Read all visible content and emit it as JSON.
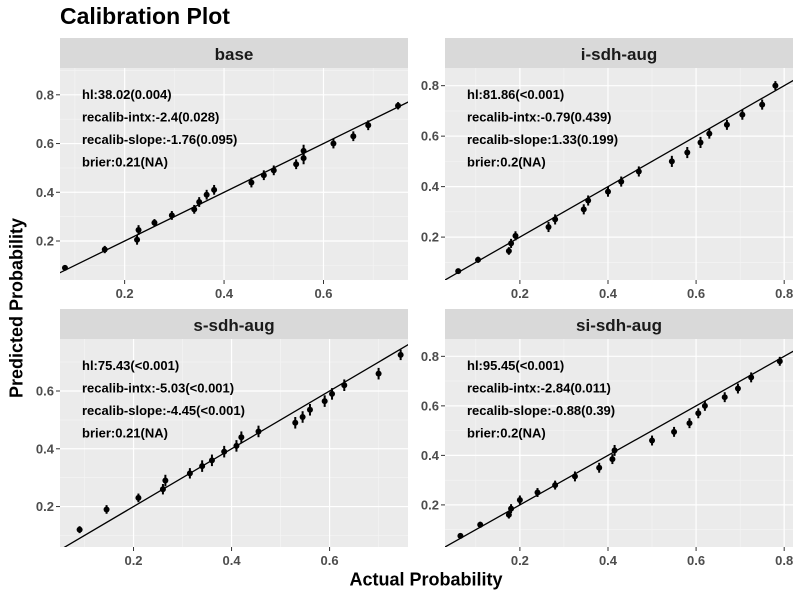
{
  "title": "Calibration Plot",
  "xlabel": "Actual Probability",
  "ylabel": "Predicted Probability",
  "chart_data": [
    {
      "type": "scatter",
      "panel": "base",
      "xlim": [
        0.07,
        0.77
      ],
      "ylim": [
        0.04,
        0.91
      ],
      "x_ticks": [
        0.2,
        0.4,
        0.6
      ],
      "x_tick_labels": [
        "0.2",
        "0.4",
        "0.6"
      ],
      "y_ticks": [
        0.2,
        0.4,
        0.6,
        0.8
      ],
      "y_tick_labels": [
        "0.2",
        "0.4",
        "0.6",
        "0.8"
      ],
      "annotations": [
        "hl:38.02(0.004)",
        "recalib-intx:-2.4(0.028)",
        "recalib-slope:-1.76(0.095)",
        "brier:0.21(NA)"
      ],
      "points": [
        {
          "x": 0.08,
          "y": 0.09,
          "err": 0.01
        },
        {
          "x": 0.16,
          "y": 0.165,
          "err": 0.015
        },
        {
          "x": 0.225,
          "y": 0.205,
          "err": 0.02
        },
        {
          "x": 0.228,
          "y": 0.245,
          "err": 0.02
        },
        {
          "x": 0.26,
          "y": 0.275,
          "err": 0.015
        },
        {
          "x": 0.295,
          "y": 0.305,
          "err": 0.018
        },
        {
          "x": 0.34,
          "y": 0.33,
          "err": 0.018
        },
        {
          "x": 0.35,
          "y": 0.36,
          "err": 0.02
        },
        {
          "x": 0.365,
          "y": 0.39,
          "err": 0.02
        },
        {
          "x": 0.38,
          "y": 0.41,
          "err": 0.02
        },
        {
          "x": 0.455,
          "y": 0.44,
          "err": 0.02
        },
        {
          "x": 0.48,
          "y": 0.47,
          "err": 0.02
        },
        {
          "x": 0.5,
          "y": 0.49,
          "err": 0.02
        },
        {
          "x": 0.545,
          "y": 0.515,
          "err": 0.02
        },
        {
          "x": 0.56,
          "y": 0.54,
          "err": 0.025
        },
        {
          "x": 0.56,
          "y": 0.57,
          "err": 0.025
        },
        {
          "x": 0.62,
          "y": 0.6,
          "err": 0.02
        },
        {
          "x": 0.66,
          "y": 0.63,
          "err": 0.02
        },
        {
          "x": 0.69,
          "y": 0.675,
          "err": 0.02
        },
        {
          "x": 0.75,
          "y": 0.755,
          "err": 0.015
        }
      ]
    },
    {
      "type": "scatter",
      "panel": "i-sdh-aug",
      "xlim": [
        0.03,
        0.82
      ],
      "ylim": [
        0.03,
        0.87
      ],
      "x_ticks": [
        0.2,
        0.4,
        0.6,
        0.8
      ],
      "x_tick_labels": [
        "0.2",
        "0.4",
        "0.6",
        "0.8"
      ],
      "y_ticks": [
        0.2,
        0.4,
        0.6,
        0.8
      ],
      "y_tick_labels": [
        "0.2",
        "0.4",
        "0.6",
        "0.8"
      ],
      "annotations": [
        "hl:81.86(<0.001)",
        "recalib-intx:-0.79(0.439)",
        "recalib-slope:1.33(0.199)",
        "brier:0.2(NA)"
      ],
      "points": [
        {
          "x": 0.06,
          "y": 0.065,
          "err": 0.01
        },
        {
          "x": 0.105,
          "y": 0.11,
          "err": 0.012
        },
        {
          "x": 0.175,
          "y": 0.145,
          "err": 0.015
        },
        {
          "x": 0.18,
          "y": 0.175,
          "err": 0.018
        },
        {
          "x": 0.19,
          "y": 0.205,
          "err": 0.018
        },
        {
          "x": 0.265,
          "y": 0.24,
          "err": 0.02
        },
        {
          "x": 0.28,
          "y": 0.27,
          "err": 0.02
        },
        {
          "x": 0.345,
          "y": 0.31,
          "err": 0.02
        },
        {
          "x": 0.355,
          "y": 0.345,
          "err": 0.02
        },
        {
          "x": 0.4,
          "y": 0.38,
          "err": 0.02
        },
        {
          "x": 0.43,
          "y": 0.42,
          "err": 0.02
        },
        {
          "x": 0.47,
          "y": 0.46,
          "err": 0.02
        },
        {
          "x": 0.545,
          "y": 0.5,
          "err": 0.022
        },
        {
          "x": 0.58,
          "y": 0.535,
          "err": 0.022
        },
        {
          "x": 0.61,
          "y": 0.575,
          "err": 0.022
        },
        {
          "x": 0.63,
          "y": 0.61,
          "err": 0.02
        },
        {
          "x": 0.67,
          "y": 0.645,
          "err": 0.02
        },
        {
          "x": 0.705,
          "y": 0.685,
          "err": 0.02
        },
        {
          "x": 0.75,
          "y": 0.725,
          "err": 0.02
        },
        {
          "x": 0.78,
          "y": 0.8,
          "err": 0.018
        }
      ]
    },
    {
      "type": "scatter",
      "panel": "s-sdh-aug",
      "xlim": [
        0.05,
        0.76
      ],
      "ylim": [
        0.06,
        0.78
      ],
      "x_ticks": [
        0.2,
        0.4,
        0.6
      ],
      "x_tick_labels": [
        "0.2",
        "0.4",
        "0.6"
      ],
      "y_ticks": [
        0.2,
        0.4,
        0.6
      ],
      "y_tick_labels": [
        "0.2",
        "0.4",
        "0.6"
      ],
      "annotations": [
        "hl:75.43(<0.001)",
        "recalib-intx:-5.03(<0.001)",
        "recalib-slope:-4.45(<0.001)",
        "brier:0.21(NA)"
      ],
      "points": [
        {
          "x": 0.09,
          "y": 0.12,
          "err": 0.012
        },
        {
          "x": 0.145,
          "y": 0.19,
          "err": 0.015
        },
        {
          "x": 0.21,
          "y": 0.23,
          "err": 0.015
        },
        {
          "x": 0.26,
          "y": 0.26,
          "err": 0.018
        },
        {
          "x": 0.265,
          "y": 0.29,
          "err": 0.02
        },
        {
          "x": 0.315,
          "y": 0.315,
          "err": 0.018
        },
        {
          "x": 0.34,
          "y": 0.34,
          "err": 0.02
        },
        {
          "x": 0.36,
          "y": 0.36,
          "err": 0.02
        },
        {
          "x": 0.385,
          "y": 0.39,
          "err": 0.02
        },
        {
          "x": 0.41,
          "y": 0.41,
          "err": 0.02
        },
        {
          "x": 0.42,
          "y": 0.44,
          "err": 0.02
        },
        {
          "x": 0.455,
          "y": 0.46,
          "err": 0.02
        },
        {
          "x": 0.53,
          "y": 0.49,
          "err": 0.02
        },
        {
          "x": 0.545,
          "y": 0.51,
          "err": 0.02
        },
        {
          "x": 0.56,
          "y": 0.535,
          "err": 0.02
        },
        {
          "x": 0.59,
          "y": 0.565,
          "err": 0.02
        },
        {
          "x": 0.605,
          "y": 0.59,
          "err": 0.02
        },
        {
          "x": 0.63,
          "y": 0.62,
          "err": 0.02
        },
        {
          "x": 0.7,
          "y": 0.66,
          "err": 0.02
        },
        {
          "x": 0.745,
          "y": 0.725,
          "err": 0.018
        }
      ]
    },
    {
      "type": "scatter",
      "panel": "si-sdh-aug",
      "xlim": [
        0.03,
        0.82
      ],
      "ylim": [
        0.03,
        0.87
      ],
      "x_ticks": [
        0.2,
        0.4,
        0.6,
        0.8
      ],
      "x_tick_labels": [
        "0.2",
        "0.4",
        "0.6",
        "0.8"
      ],
      "y_ticks": [
        0.2,
        0.4,
        0.6,
        0.8
      ],
      "y_tick_labels": [
        "0.2",
        "0.4",
        "0.6",
        "0.8"
      ],
      "annotations": [
        "hl:95.45(<0.001)",
        "recalib-intx:-2.84(0.011)",
        "recalib-slope:-0.88(0.39)",
        "brier:0.2(NA)"
      ],
      "points": [
        {
          "x": 0.065,
          "y": 0.075,
          "err": 0.01
        },
        {
          "x": 0.11,
          "y": 0.12,
          "err": 0.012
        },
        {
          "x": 0.175,
          "y": 0.16,
          "err": 0.015
        },
        {
          "x": 0.18,
          "y": 0.185,
          "err": 0.018
        },
        {
          "x": 0.2,
          "y": 0.22,
          "err": 0.018
        },
        {
          "x": 0.24,
          "y": 0.25,
          "err": 0.018
        },
        {
          "x": 0.28,
          "y": 0.28,
          "err": 0.018
        },
        {
          "x": 0.325,
          "y": 0.315,
          "err": 0.02
        },
        {
          "x": 0.38,
          "y": 0.35,
          "err": 0.02
        },
        {
          "x": 0.41,
          "y": 0.385,
          "err": 0.02
        },
        {
          "x": 0.415,
          "y": 0.42,
          "err": 0.022
        },
        {
          "x": 0.5,
          "y": 0.46,
          "err": 0.02
        },
        {
          "x": 0.55,
          "y": 0.495,
          "err": 0.02
        },
        {
          "x": 0.585,
          "y": 0.53,
          "err": 0.02
        },
        {
          "x": 0.605,
          "y": 0.57,
          "err": 0.02
        },
        {
          "x": 0.62,
          "y": 0.6,
          "err": 0.02
        },
        {
          "x": 0.665,
          "y": 0.635,
          "err": 0.02
        },
        {
          "x": 0.695,
          "y": 0.67,
          "err": 0.02
        },
        {
          "x": 0.725,
          "y": 0.715,
          "err": 0.02
        },
        {
          "x": 0.79,
          "y": 0.78,
          "err": 0.018
        }
      ]
    }
  ]
}
